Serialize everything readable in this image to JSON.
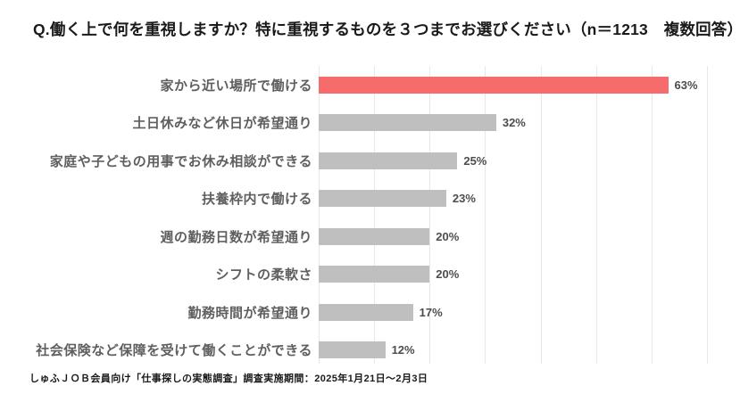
{
  "title": "Q.働く上で何を重視しますか？特に重視するものを３つまでお選びください（n＝1213　複数回答）",
  "footer": "しゅふＪＯＢ会員向け「仕事探しの実態調査」調査実施期間：2025年1月21日～2月3日",
  "colors": {
    "highlight_bar": "#f66c6c",
    "default_bar": "#bfbfbf",
    "gridline": "#e8e8e8",
    "category_label": "#5f5f5f",
    "value_label": "#4d4d4d",
    "title_text": "#1a1a1a",
    "background": "#ffffff"
  },
  "chart_data": {
    "type": "bar",
    "orientation": "horizontal",
    "title": "Q.働く上で何を重視しますか？特に重視するものを３つまでお選びください（n＝1213　複数回答）",
    "categories": [
      "家から近い場所で働ける",
      "土日休みなど休日が希望通り",
      "家庭や子どもの用事でお休み相談ができる",
      "扶養枠内で働ける",
      "週の勤務日数が希望通り",
      "シフトの柔軟さ",
      "勤務時間が希望通り",
      "社会保険など保障を受けて働くことができる"
    ],
    "values": [
      63,
      32,
      25,
      23,
      20,
      20,
      17,
      12
    ],
    "value_labels": [
      "63%",
      "32%",
      "25%",
      "23%",
      "20%",
      "20%",
      "17%",
      "12%"
    ],
    "value_suffix": "%",
    "xlabel": "",
    "ylabel": "",
    "xlim": [
      0,
      70
    ],
    "grid_step": 10,
    "grid": true,
    "legend": false,
    "highlight_index": 0,
    "sample_size": "n＝1213",
    "answer_type": "複数回答",
    "source_note": "しゅふＪＯＢ会員向け「仕事探しの実態調査」調査実施期間：2025年1月21日～2月3日"
  }
}
